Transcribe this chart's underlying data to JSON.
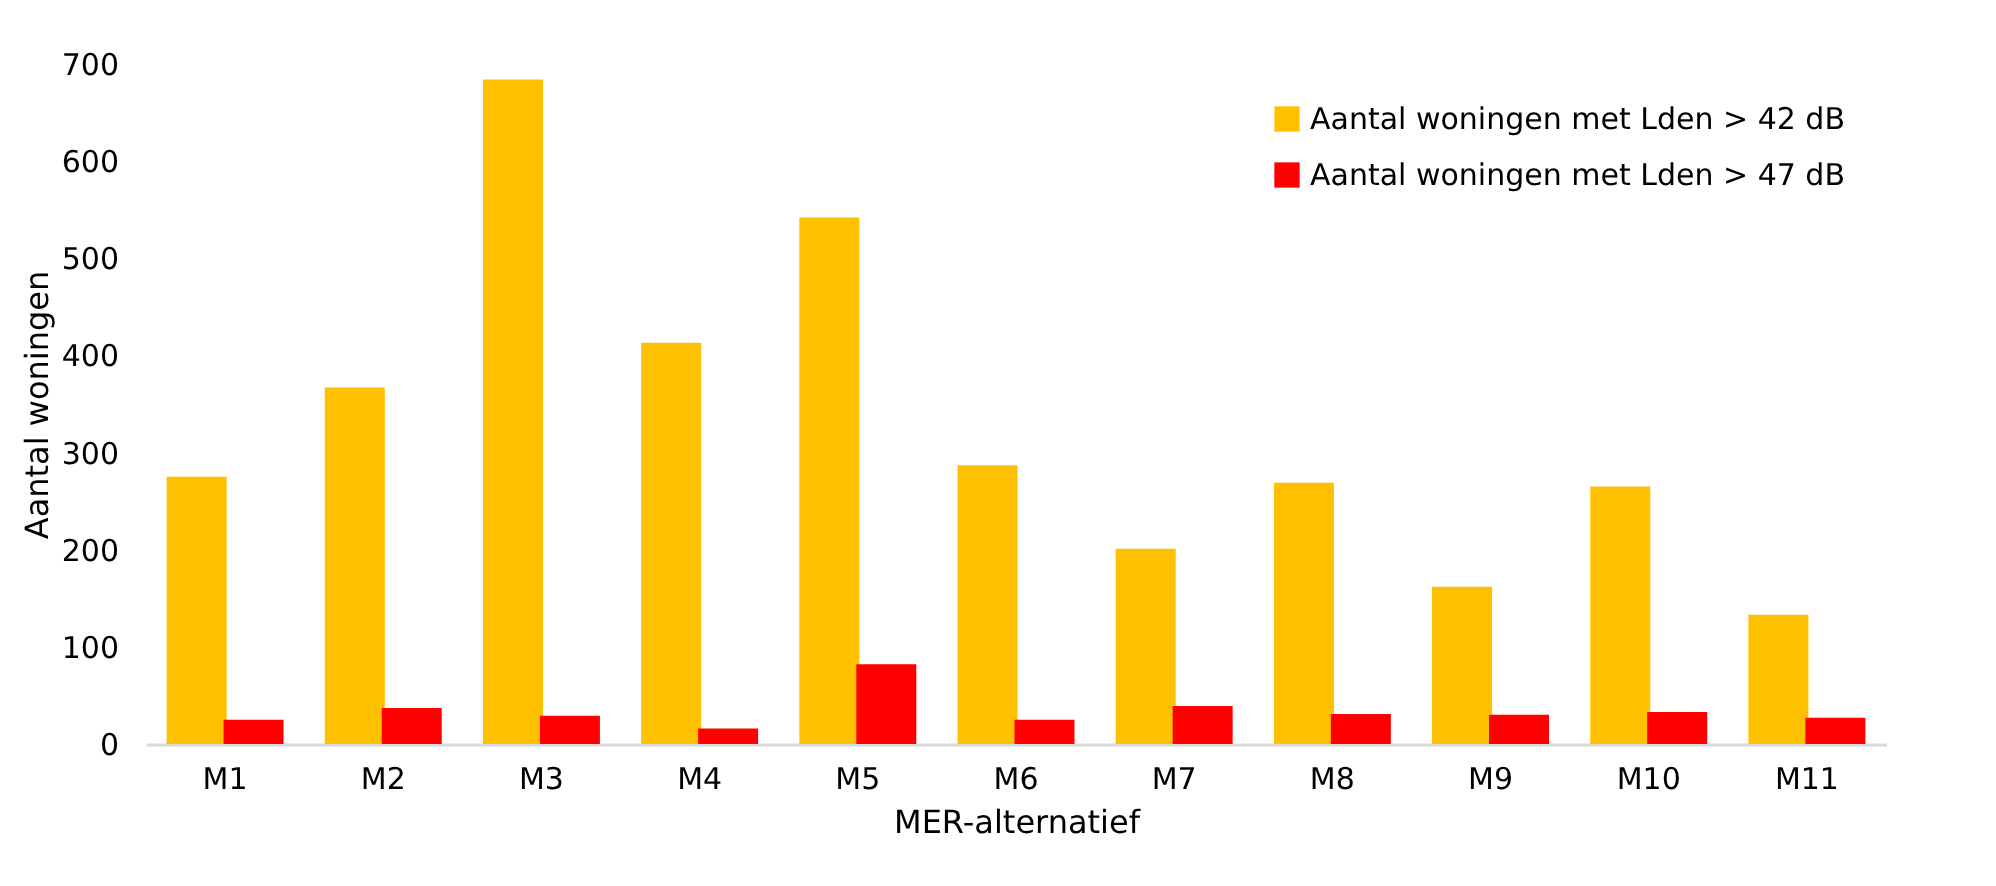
{
  "chart_data": {
    "type": "bar",
    "xlabel": "MER-alternatief",
    "ylabel": "Aantal woningen",
    "categories": [
      "M1",
      "M2",
      "M3",
      "M4",
      "M5",
      "M6",
      "M7",
      "M8",
      "M9",
      "M10",
      "M11"
    ],
    "series": [
      {
        "name": "Aantal woningen met Lden > 42 dB",
        "color": "#ffc000",
        "values": [
          275,
          367,
          684,
          413,
          542,
          287,
          201,
          269,
          162,
          265,
          133
        ]
      },
      {
        "name": "Aantal woningen met Lden > 47 dB",
        "color": "#ff0000",
        "values": [
          25,
          37,
          29,
          16,
          82,
          25,
          39,
          31,
          30,
          33,
          27
        ]
      }
    ],
    "ylim": [
      0,
      700
    ],
    "yticks": [
      0,
      100,
      200,
      300,
      400,
      500,
      600,
      700
    ],
    "grid": false,
    "legend": "top right"
  }
}
